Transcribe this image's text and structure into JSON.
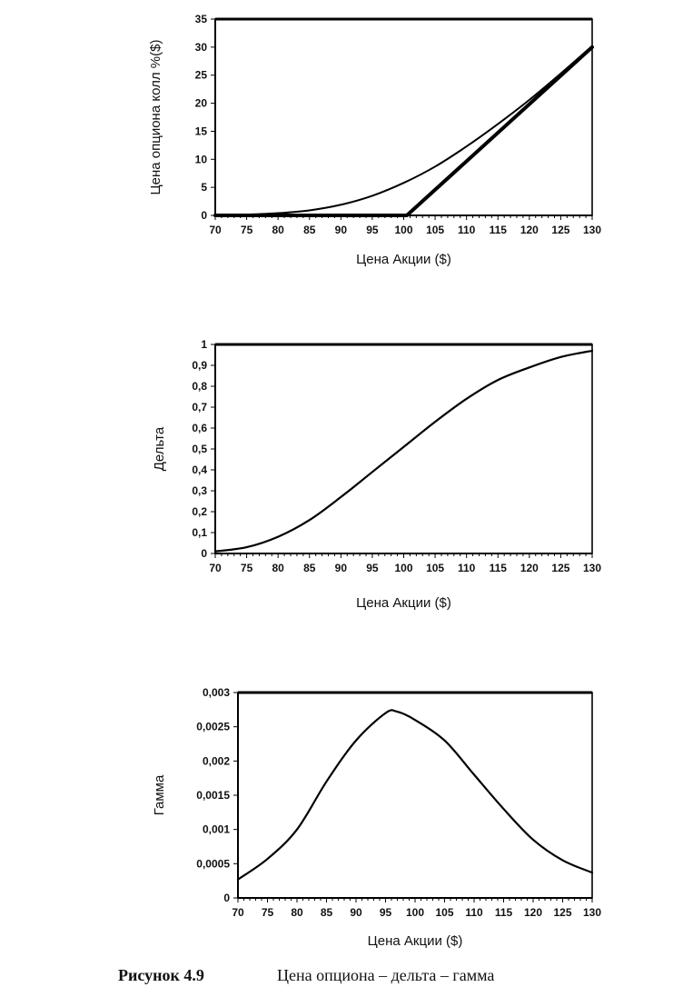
{
  "figure": {
    "caption_label": "Рисунок 4.9",
    "caption_text": "Цена опциона – дельта – гамма"
  },
  "chart_data": [
    {
      "type": "line",
      "title": "",
      "xlabel": "Цена Акции ($)",
      "ylabel": "Цена опциона колл %($)",
      "xlim": [
        70,
        130
      ],
      "ylim": [
        0,
        35
      ],
      "x_ticks": [
        "70",
        "75",
        "80",
        "85",
        "90",
        "95",
        "100",
        "105",
        "110",
        "115",
        "120",
        "125",
        "130"
      ],
      "y_ticks": [
        "0",
        "5",
        "10",
        "15",
        "20",
        "25",
        "30",
        "35"
      ],
      "grid": false,
      "series": [
        {
          "x": [
            70,
            75,
            80,
            85,
            90,
            95,
            100,
            105,
            110,
            115,
            120,
            125,
            130
          ],
          "values": [
            0.05,
            0.15,
            0.4,
            0.9,
            1.9,
            3.5,
            5.8,
            8.7,
            12.3,
            16.3,
            20.6,
            25.3,
            30.2
          ]
        },
        {
          "x": [
            70,
            100.5,
            130
          ],
          "values": [
            0,
            0,
            30
          ]
        }
      ]
    },
    {
      "type": "line",
      "title": "",
      "xlabel": "Цена Акции ($)",
      "ylabel": "Дельта",
      "xlim": [
        70,
        130
      ],
      "ylim": [
        0,
        1
      ],
      "x_ticks": [
        "70",
        "75",
        "80",
        "85",
        "90",
        "95",
        "100",
        "105",
        "110",
        "115",
        "120",
        "125",
        "130"
      ],
      "y_ticks": [
        "0",
        "0,1",
        "0,2",
        "0,3",
        "0,4",
        "0,5",
        "0,6",
        "0,7",
        "0,8",
        "0,9",
        "1"
      ],
      "grid": false,
      "series": [
        {
          "x": [
            70,
            75,
            80,
            85,
            90,
            95,
            100,
            105,
            110,
            115,
            120,
            125,
            130
          ],
          "values": [
            0.01,
            0.03,
            0.08,
            0.16,
            0.27,
            0.39,
            0.51,
            0.63,
            0.74,
            0.83,
            0.89,
            0.94,
            0.97
          ]
        }
      ]
    },
    {
      "type": "line",
      "title": "",
      "xlabel": "Цена Акции ($)",
      "ylabel": "Гамма",
      "xlim": [
        70,
        130
      ],
      "ylim": [
        0,
        0.003
      ],
      "x_ticks": [
        "70",
        "75",
        "80",
        "85",
        "90",
        "95",
        "100",
        "105",
        "110",
        "115",
        "120",
        "125",
        "130"
      ],
      "y_ticks": [
        "0",
        "0,0005",
        "0,001",
        "0,0015",
        "0,002",
        "0,0025",
        "0,003"
      ],
      "grid": false,
      "series": [
        {
          "x": [
            70,
            75,
            80,
            85,
            90,
            95,
            97,
            100,
            105,
            110,
            115,
            120,
            125,
            130
          ],
          "values": [
            0.00027,
            0.00057,
            0.001,
            0.0017,
            0.0023,
            0.0027,
            0.00272,
            0.0026,
            0.0023,
            0.0018,
            0.0013,
            0.00085,
            0.00055,
            0.00037
          ]
        }
      ]
    }
  ]
}
